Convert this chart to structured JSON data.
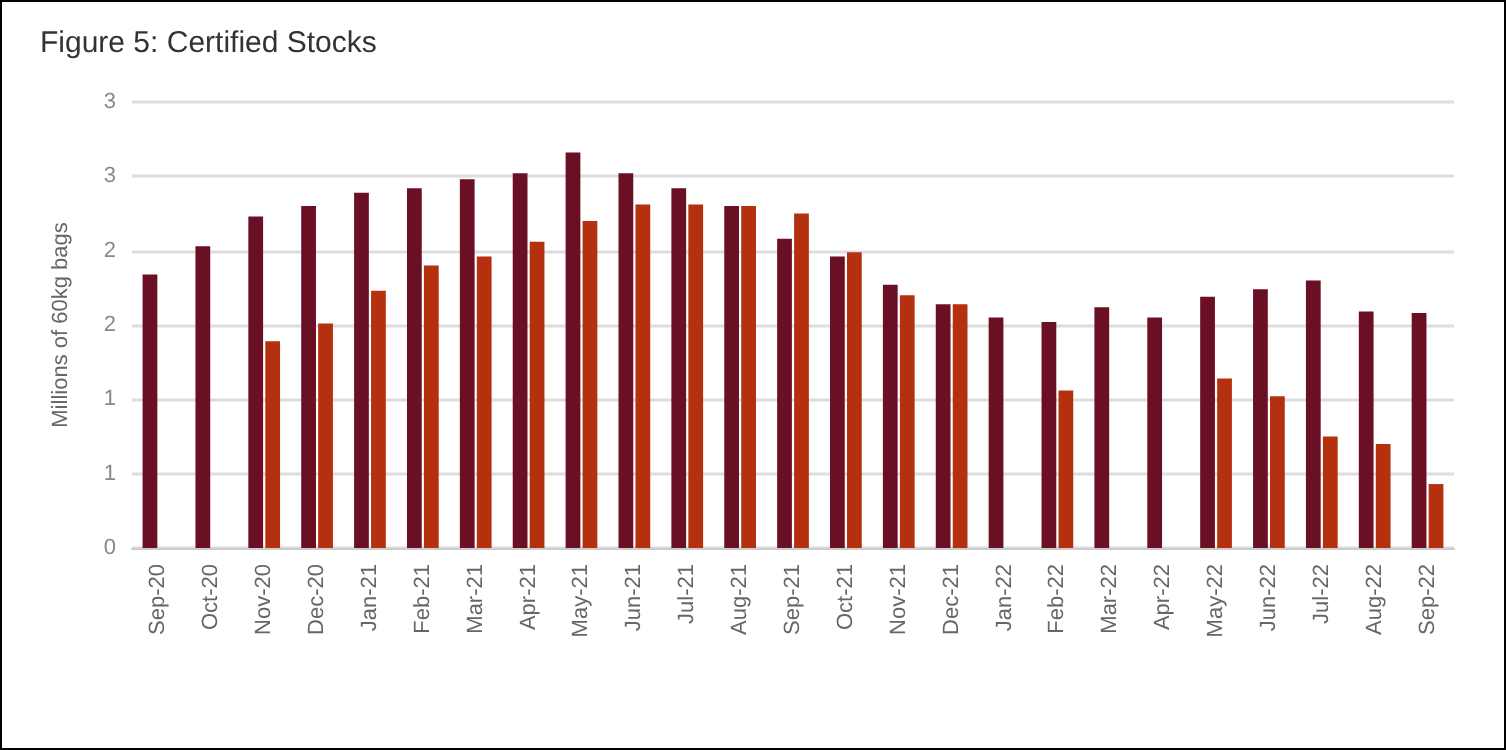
{
  "chart_data": {
    "type": "bar",
    "title": "Figure 5: Certified Stocks",
    "ylabel": "Millions of 60kg bags",
    "categories": [
      "Sep-20",
      "Oct-20",
      "Nov-20",
      "Dec-20",
      "Jan-21",
      "Feb-21",
      "Mar-21",
      "Apr-21",
      "May-21",
      "Jun-21",
      "Jul-21",
      "Aug-21",
      "Sep-21",
      "Oct-21",
      "Nov-21",
      "Dec-21",
      "Jan-22",
      "Feb-22",
      "Mar-22",
      "Apr-22",
      "May-22",
      "Jun-22",
      "Jul-22",
      "Aug-22",
      "Sep-22"
    ],
    "series": [
      {
        "color": "#6b0f24",
        "values": [
          1.84,
          2.03,
          2.23,
          2.3,
          2.39,
          2.42,
          2.48,
          2.52,
          2.66,
          2.52,
          2.42,
          2.3,
          2.08,
          1.96,
          1.77,
          1.64,
          1.55,
          1.52,
          1.62,
          1.55,
          1.69,
          1.74,
          1.8,
          1.59,
          1.58
        ]
      },
      {
        "color": "#b5300f",
        "values": [
          null,
          null,
          1.39,
          1.51,
          1.73,
          1.9,
          1.96,
          2.06,
          2.2,
          2.31,
          2.31,
          2.3,
          2.25,
          1.99,
          1.7,
          1.64,
          null,
          1.06,
          null,
          null,
          1.14,
          1.02,
          0.75,
          0.7,
          0.43
        ]
      }
    ],
    "ylim": [
      0,
      3
    ],
    "yticks": [
      0,
      {
        "value": 0.5,
        "label": "1"
      },
      1,
      {
        "value": 1.5,
        "label": "2"
      },
      2,
      {
        "value": 2.5,
        "label": "3"
      },
      3
    ],
    "grid": "y"
  }
}
